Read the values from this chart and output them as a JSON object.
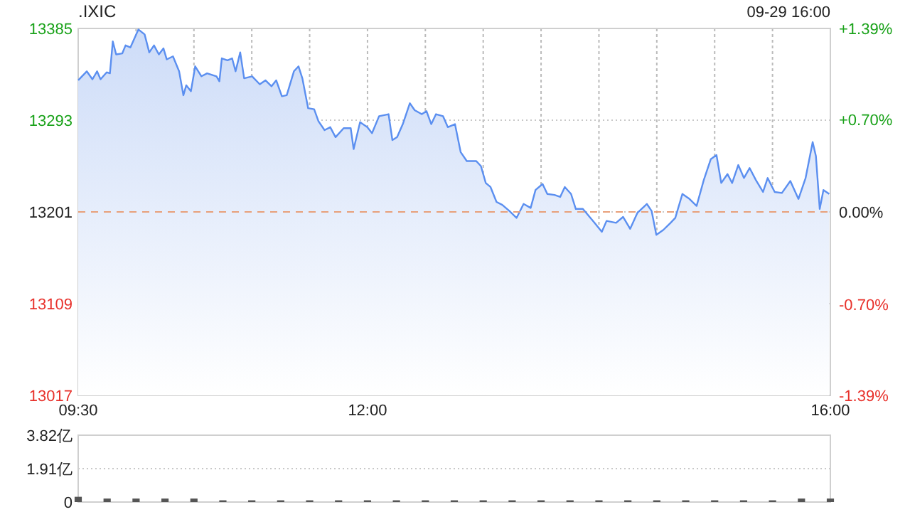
{
  "chart_data": [
    {
      "type": "area",
      "title": ".IXIC",
      "annotations": [
        "09-29 16:00"
      ],
      "color": "#5b8ff0",
      "grid": true,
      "x": [
        9.5,
        9.574,
        9.623,
        9.663,
        9.693,
        9.746,
        9.774,
        9.799,
        9.828,
        9.881,
        9.909,
        9.951,
        10.02,
        10.074,
        10.114,
        10.155,
        10.197,
        10.237,
        10.265,
        10.319,
        10.372,
        10.409,
        10.434,
        10.474,
        10.511,
        10.565,
        10.614,
        10.695,
        10.72,
        10.741,
        10.79,
        10.83,
        10.86,
        10.9,
        10.934,
        11.003,
        11.069,
        11.118,
        11.171,
        11.211,
        11.26,
        11.302,
        11.364,
        11.404,
        11.437,
        11.487,
        11.539,
        11.576,
        11.629,
        11.678,
        11.724,
        11.794,
        11.855,
        11.88,
        11.936,
        11.998,
        12.039,
        12.1,
        12.182,
        12.215,
        12.256,
        12.305,
        12.366,
        12.408,
        12.469,
        12.51,
        12.551,
        12.592,
        12.653,
        12.694,
        12.756,
        12.805,
        12.858,
        12.94,
        12.98,
        13.022,
        13.063,
        13.115,
        13.165,
        13.226,
        13.288,
        13.349,
        13.41,
        13.452,
        13.513,
        13.554,
        13.616,
        13.665,
        13.705,
        13.759,
        13.8,
        13.861,
        13.963,
        14.025,
        14.066,
        14.148,
        14.209,
        14.27,
        14.332,
        14.414,
        14.455,
        14.496,
        14.557,
        14.619,
        14.66,
        14.721,
        14.783,
        14.844,
        14.906,
        14.967,
        15.016,
        15.057,
        15.111,
        15.151,
        15.204,
        15.253,
        15.302,
        15.356,
        15.418,
        15.458,
        15.519,
        15.581,
        15.654,
        15.724,
        15.786,
        15.847,
        15.875,
        15.908,
        15.94,
        15.99
      ],
      "values": [
        13333,
        13342,
        13334,
        13342,
        13334,
        13341,
        13340,
        13372,
        13359,
        13360,
        13368,
        13366,
        13384,
        13379,
        13361,
        13368,
        13359,
        13365,
        13354,
        13357,
        13342,
        13318,
        13328,
        13322,
        13347,
        13337,
        13340,
        13337,
        13332,
        13355,
        13353,
        13355,
        13342,
        13361,
        13335,
        13337,
        13329,
        13333,
        13327,
        13333,
        13317,
        13318,
        13342,
        13347,
        13335,
        13305,
        13304,
        13292,
        13283,
        13286,
        13276,
        13285,
        13285,
        13264,
        13291,
        13286,
        13280,
        13297,
        13299,
        13273,
        13276,
        13289,
        13310,
        13303,
        13299,
        13302,
        13289,
        13299,
        13297,
        13286,
        13289,
        13261,
        13252,
        13252,
        13247,
        13230,
        13226,
        13211,
        13208,
        13202,
        13195,
        13209,
        13205,
        13223,
        13229,
        13219,
        13218,
        13216,
        13226,
        13219,
        13204,
        13204,
        13190,
        13181,
        13192,
        13190,
        13196,
        13184,
        13200,
        13209,
        13202,
        13178,
        13183,
        13190,
        13195,
        13219,
        13214,
        13207,
        13233,
        13254,
        13258,
        13230,
        13239,
        13230,
        13248,
        13235,
        13245,
        13233,
        13221,
        13235,
        13221,
        13220,
        13232,
        13214,
        13235,
        13271,
        13257,
        13204,
        13223,
        13219
      ],
      "xlim": [
        9.5,
        16
      ],
      "xticks": [
        {
          "value": 9.5,
          "label": "09:30"
        },
        {
          "value": 10,
          "label": null
        },
        {
          "value": 10.5,
          "label": null
        },
        {
          "value": 11,
          "label": null
        },
        {
          "value": 11.5,
          "label": null
        },
        {
          "value": 12,
          "label": "12:00"
        },
        {
          "value": 12.5,
          "label": null
        },
        {
          "value": 13,
          "label": null
        },
        {
          "value": 13.5,
          "label": null
        },
        {
          "value": 14,
          "label": null
        },
        {
          "value": 14.5,
          "label": null
        },
        {
          "value": 15,
          "label": null
        },
        {
          "value": 15.5,
          "label": null
        },
        {
          "value": 16,
          "label": "16:00"
        }
      ],
      "ylim": [
        13017,
        13385
      ],
      "yticks": [
        13017,
        13109,
        13201,
        13293,
        13385
      ],
      "y2lim": [
        -1.39,
        1.39
      ],
      "y2ticks": [
        {
          "value": -1.39,
          "label": "-1.39%"
        },
        {
          "value": -0.7,
          "label": "-0.70%"
        },
        {
          "value": 0,
          "label": "0.00%"
        },
        {
          "value": 0.7,
          "label": "+0.70%"
        },
        {
          "value": 1.39,
          "label": "+1.39%"
        }
      ],
      "ref_lines": [
        {
          "axis": "y",
          "value": 13201,
          "color": "#e8a07a",
          "line_style": "dashed"
        }
      ]
    },
    {
      "type": "bar",
      "color": "#555555",
      "grid": "y",
      "tick_labels": "y",
      "x": [
        9.5,
        9.75,
        10,
        10.25,
        10.5,
        10.75,
        11,
        11.25,
        11.5,
        11.75,
        12,
        12.25,
        12.5,
        12.75,
        13,
        13.25,
        13.5,
        13.75,
        14,
        14.25,
        14.5,
        14.75,
        15,
        15.25,
        15.5,
        15.75,
        16
      ],
      "values": [
        0.3,
        0.2,
        0.2,
        0.2,
        0.2,
        0.1,
        0.1,
        0.1,
        0.1,
        0.1,
        0.1,
        0.1,
        0.1,
        0.1,
        0.1,
        0.1,
        0.1,
        0.1,
        0.1,
        0.1,
        0.1,
        0.1,
        0.1,
        0.1,
        0.1,
        0.2,
        0.2
      ],
      "xlim": [
        9.5,
        16
      ],
      "ylim": [
        0,
        3.82
      ],
      "yticks": [
        0,
        {
          "value": 1.91,
          "label": "1.91亿"
        },
        {
          "value": 3.82,
          "label": "3.82亿"
        }
      ]
    }
  ]
}
